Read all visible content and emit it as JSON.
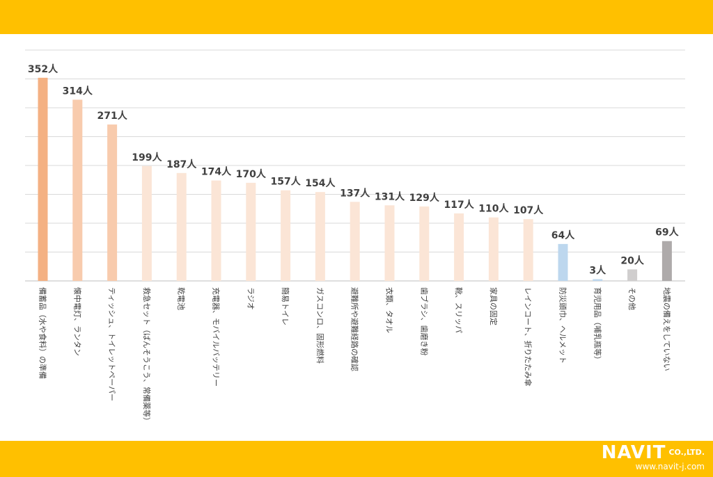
{
  "chart_data": {
    "type": "bar",
    "title": "",
    "xlabel": "",
    "ylabel": "",
    "ylim": [
      0,
      400
    ],
    "grid": true,
    "unit": "人",
    "categories": [
      "備蓄品（水や食料）の準備",
      "懐中電灯、ランタン",
      "ティッシュ、トイレットペーパー",
      "救急セット（ばんそうこう、常備薬等）",
      "乾電池",
      "充電器、モバイルバッテリー",
      "ラジオ",
      "簡易トイレ",
      "ガスコンロ、固形燃料",
      "避難所や避難経路の確認",
      "衣類、タオル",
      "歯ブラシ、歯磨き粉",
      "靴、スリッパ",
      "家具の固定",
      "レインコート、折りたたみ傘",
      "防災頭巾、ヘルメット",
      "育児用品（哺乳瓶等）",
      "その他",
      "地震の備えをしていない"
    ],
    "values": [
      352,
      314,
      271,
      199,
      187,
      174,
      170,
      157,
      154,
      137,
      131,
      129,
      117,
      110,
      107,
      64,
      3,
      20,
      69
    ],
    "value_labels": [
      "352人",
      "314人",
      "271人",
      "199人",
      "187人",
      "174人",
      "170人",
      "157人",
      "154人",
      "137人",
      "131人",
      "129人",
      "117人",
      "110人",
      "107人",
      "64人",
      "3人",
      "20人",
      "69人"
    ],
    "bar_colors": [
      "#f4b183",
      "#f8cbad",
      "#f8cbad",
      "#fbe5d6",
      "#fbe5d6",
      "#fbe5d6",
      "#fbe5d6",
      "#fbe5d6",
      "#fbe5d6",
      "#fbe5d6",
      "#fbe5d6",
      "#fbe5d6",
      "#fbe5d6",
      "#fbe5d6",
      "#fbe5d6",
      "#bdd7ee",
      "#bdd7ee",
      "#d0cece",
      "#aeaaaa"
    ]
  },
  "logo": {
    "brand": "NAVIT",
    "suffix": "CO.,LTD.",
    "url": "www.navit-j.com"
  },
  "colors": {
    "band": "#ffc000",
    "grid": "#d9d9d9",
    "text": "#404040"
  }
}
